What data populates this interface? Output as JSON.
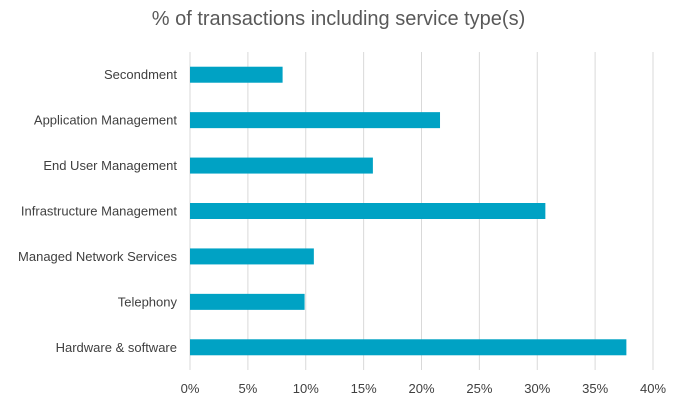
{
  "chart_data": {
    "type": "bar",
    "orientation": "horizontal",
    "title": "% of transactions including service type(s)",
    "categories": [
      "Secondment",
      "Application Management",
      "End User Management",
      "Infrastructure Management",
      "Managed Network Services",
      "Telephony",
      "Hardware & software"
    ],
    "values": [
      8,
      21.6,
      15.8,
      30.7,
      10.7,
      9.9,
      37.7
    ],
    "xlim": [
      0,
      40
    ],
    "xticks": [
      0,
      5,
      10,
      15,
      20,
      25,
      30,
      35,
      40
    ],
    "tick_suffix": "%",
    "xlabel": "",
    "ylabel": "",
    "grid": "vertical",
    "legend": "none",
    "colors": {
      "bar": "#00A2C4",
      "grid": "#D9D9D9",
      "text": "#404040",
      "title": "#595959"
    }
  }
}
